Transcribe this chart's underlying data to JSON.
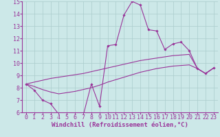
{
  "bg_color": "#cce8e8",
  "line_color": "#993399",
  "grid_color": "#aacccc",
  "xlabel": "Windchill (Refroidissement éolien,°C)",
  "xlabel_fontsize": 6.5,
  "tick_fontsize": 6.0,
  "xlim": [
    -0.5,
    23.5
  ],
  "ylim": [
    6,
    15
  ],
  "yticks": [
    6,
    7,
    8,
    9,
    10,
    11,
    12,
    13,
    14,
    15
  ],
  "xticks": [
    0,
    1,
    2,
    3,
    4,
    5,
    6,
    7,
    8,
    9,
    10,
    11,
    12,
    13,
    14,
    15,
    16,
    17,
    18,
    19,
    20,
    21,
    22,
    23
  ],
  "curve1_x": [
    0,
    1,
    2,
    3,
    4,
    5,
    6,
    7,
    8,
    9,
    10,
    11,
    12,
    13,
    14,
    15,
    16,
    17,
    18,
    19,
    20,
    21,
    22,
    23
  ],
  "curve1_y": [
    8.3,
    7.8,
    7.0,
    6.7,
    5.85,
    5.9,
    5.85,
    5.75,
    8.3,
    6.5,
    11.4,
    11.5,
    13.9,
    15.0,
    14.7,
    12.7,
    12.6,
    11.1,
    11.55,
    11.7,
    11.0,
    9.55,
    9.15,
    9.6
  ],
  "curve2_x": [
    0,
    1,
    2,
    3,
    4,
    5,
    6,
    7,
    8,
    9,
    10,
    11,
    12,
    13,
    14,
    15,
    16,
    17,
    18,
    19,
    20,
    21,
    22,
    23
  ],
  "curve2_y": [
    8.3,
    8.45,
    8.6,
    8.75,
    8.85,
    8.95,
    9.05,
    9.15,
    9.3,
    9.45,
    9.6,
    9.75,
    9.9,
    10.05,
    10.2,
    10.3,
    10.4,
    10.5,
    10.6,
    10.65,
    10.7,
    9.55,
    9.15,
    9.6
  ],
  "curve3_x": [
    0,
    1,
    2,
    3,
    4,
    5,
    6,
    7,
    8,
    9,
    10,
    11,
    12,
    13,
    14,
    15,
    16,
    17,
    18,
    19,
    20,
    21,
    22,
    23
  ],
  "curve3_y": [
    8.3,
    8.1,
    7.85,
    7.65,
    7.5,
    7.6,
    7.7,
    7.85,
    8.0,
    8.2,
    8.45,
    8.65,
    8.85,
    9.05,
    9.25,
    9.4,
    9.55,
    9.65,
    9.75,
    9.8,
    9.85,
    9.55,
    9.15,
    9.6
  ]
}
